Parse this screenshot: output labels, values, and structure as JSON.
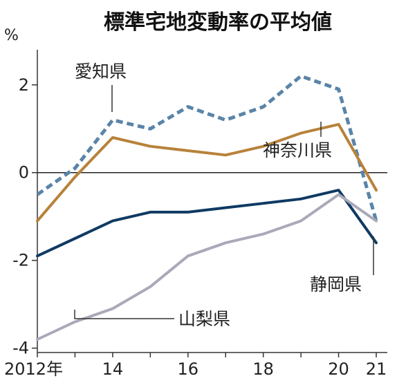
{
  "chart_data": {
    "type": "line",
    "title": "標準宅地変動率の平均値",
    "unit_label": "%",
    "x": [
      2012,
      2013,
      2014,
      2015,
      2016,
      2017,
      2018,
      2019,
      2020,
      2021
    ],
    "x_tick_labels": [
      {
        "x": 2012,
        "label": "2012年"
      },
      {
        "x": 2014,
        "label": "14"
      },
      {
        "x": 2016,
        "label": "16"
      },
      {
        "x": 2018,
        "label": "18"
      },
      {
        "x": 2020,
        "label": "20"
      },
      {
        "x": 2021,
        "label": "21"
      }
    ],
    "ylim": [
      -4.1,
      2.8
    ],
    "y_ticks": [
      {
        "value": 2,
        "label": "2"
      },
      {
        "value": 0,
        "label": "0"
      },
      {
        "value": -2,
        "label": "-2"
      },
      {
        "value": -4,
        "label": "-4"
      }
    ],
    "series": [
      {
        "name": "愛知県",
        "color": "#5a84a8",
        "style": "dashed",
        "values": [
          -0.5,
          0.1,
          1.2,
          1.0,
          1.5,
          1.2,
          1.5,
          2.2,
          1.9,
          -1.1
        ],
        "label_anchor": "top-left"
      },
      {
        "name": "神奈川県",
        "color": "#b8823a",
        "style": "solid",
        "values": [
          -1.1,
          -0.1,
          0.8,
          0.6,
          0.5,
          0.4,
          0.6,
          0.9,
          1.1,
          -0.4
        ],
        "label_anchor": "right-middle"
      },
      {
        "name": "静岡県",
        "color": "#0f3a63",
        "style": "solid",
        "values": [
          -1.9,
          -1.5,
          -1.1,
          -0.9,
          -0.9,
          -0.8,
          -0.7,
          -0.6,
          -0.4,
          -1.6
        ],
        "label_anchor": "bottom-right"
      },
      {
        "name": "山梨県",
        "color": "#a9a9b9",
        "style": "solid",
        "values": [
          -3.8,
          -3.4,
          -3.1,
          -2.6,
          -1.9,
          -1.6,
          -1.4,
          -1.1,
          -0.5,
          -1.1
        ],
        "label_anchor": "bottom-middle"
      }
    ],
    "grid": false,
    "zero_line": true,
    "legend": "inline labels"
  }
}
